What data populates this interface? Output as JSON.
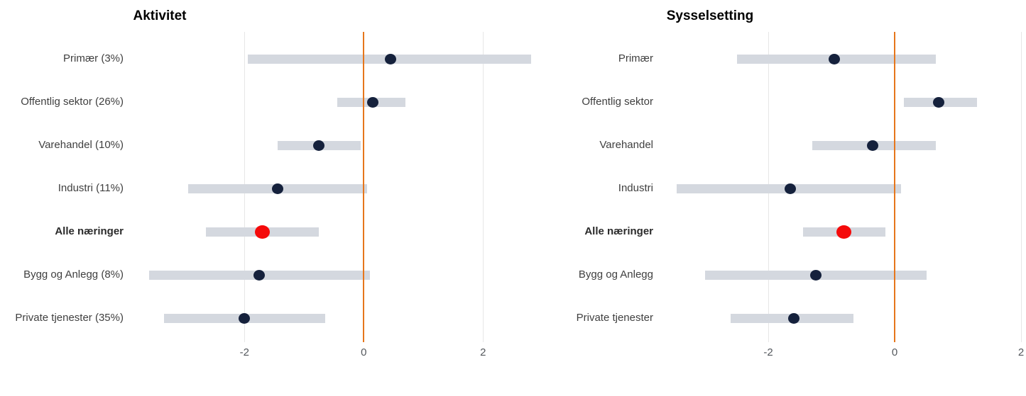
{
  "chart_data": [
    {
      "type": "scatter",
      "subtype": "dot-with-interval",
      "title": "Aktivitet",
      "orientation": "horizontal",
      "categories": [
        "Primær (3%)",
        "Offentlig sektor (26%)",
        "Varehandel (10%)",
        "Industri (11%)",
        "Alle næringer",
        "Bygg og Anlegg (8%)",
        "Private tjenester (35%)"
      ],
      "highlight_category": "Alle næringer",
      "series": [
        {
          "name": "estimate",
          "values": [
            0.45,
            0.15,
            -0.75,
            -1.45,
            -1.7,
            -1.75,
            -2.0
          ]
        },
        {
          "name": "ci_low",
          "values": [
            -1.95,
            -0.45,
            -1.45,
            -2.95,
            -2.65,
            -3.6,
            -3.35
          ]
        },
        {
          "name": "ci_high",
          "values": [
            2.8,
            0.7,
            -0.05,
            0.05,
            -0.75,
            0.1,
            -0.65
          ]
        }
      ],
      "x_ticks": [
        "-2",
        "0",
        "2"
      ],
      "x_tick_values": [
        -2,
        0,
        2
      ],
      "zero_line": 0,
      "grid": true,
      "legend": "none"
    },
    {
      "type": "scatter",
      "subtype": "dot-with-interval",
      "title": "Sysselsetting",
      "orientation": "horizontal",
      "categories": [
        "Primær",
        "Offentlig sektor",
        "Varehandel",
        "Industri",
        "Alle næringer",
        "Bygg og Anlegg",
        "Private tjenester"
      ],
      "highlight_category": "Alle næringer",
      "series": [
        {
          "name": "estimate",
          "values": [
            -0.95,
            0.7,
            -0.35,
            -1.65,
            -0.8,
            -1.25,
            -1.6
          ]
        },
        {
          "name": "ci_low",
          "values": [
            -2.5,
            0.15,
            -1.3,
            -3.45,
            -1.45,
            -3.0,
            -2.6
          ]
        },
        {
          "name": "ci_high",
          "values": [
            0.65,
            1.3,
            0.65,
            0.1,
            -0.15,
            0.5,
            -0.65
          ]
        }
      ],
      "x_ticks": [
        "-2",
        "0",
        "2"
      ],
      "x_tick_values": [
        -2,
        0,
        2
      ],
      "zero_line": 0,
      "grid": true,
      "legend": "none"
    }
  ],
  "colors": {
    "estimate_dot": "#15213c",
    "highlight_dot": "#f50a0a",
    "interval_bar": "#d4d8df",
    "zero_line": "#e6761b",
    "gridline": "#e7e7e7",
    "background": "#ffffff",
    "title_text": "#000000",
    "category_text": "#3f3f3f",
    "tick_text": "#54585d"
  }
}
